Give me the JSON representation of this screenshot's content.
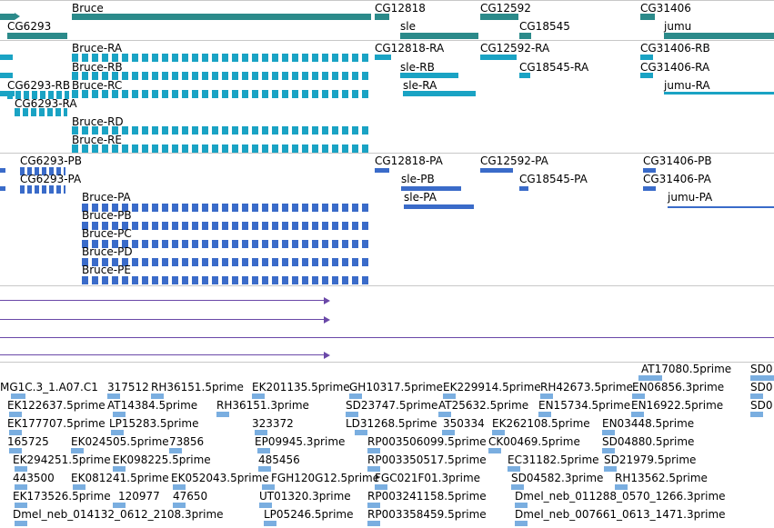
{
  "colors": {
    "gene": "#2b8a8a",
    "rna": "#1aa3c4",
    "cds": "#3a6bc9",
    "evidence": "#6a48a8",
    "est": "#7aaee0",
    "separator": "#c8c8c8"
  },
  "genes": [
    "Bruce",
    "CG6293",
    "CG12818",
    "sle",
    "CG12592",
    "CG18545",
    "CG31406",
    "jumu"
  ],
  "transcripts": [
    "Bruce-RA",
    "Bruce-RB",
    "Bruce-RC",
    "Bruce-RD",
    "Bruce-RE",
    "CG6293-RB",
    "CG6293-RA",
    "CG12818-RA",
    "sle-RB",
    "sle-RA",
    "CG12592-RA",
    "CG18545-RA",
    "CG31406-RB",
    "CG31406-RA",
    "jumu-RA"
  ],
  "proteins": [
    "CG6293-PB",
    "CG6293-PA",
    "Bruce-PA",
    "Bruce-PB",
    "Bruce-PC",
    "Bruce-PD",
    "Bruce-PE",
    "CG12818-PA",
    "sle-PB",
    "sle-PA",
    "CG12592-PA",
    "CG18545-PA",
    "CG31406-PB",
    "CG31406-PA",
    "jumu-PA"
  ],
  "ests": [
    "MG1C.3_1.A07.C1",
    "317512",
    "RH36151.5prime",
    "EK201135.5prime",
    "GH10317.5prime",
    "EK229914.5prime",
    "RH42673.5prime",
    "AT17080.5prime",
    "SD0",
    "EN06856.3prime",
    "SD0",
    "EK122637.5prime",
    "AT14384.5prime",
    "RH36151.3prime",
    "SD23747.5prime",
    "AT25632.5prime",
    "EN15734.5prime",
    "EN16922.5prime",
    "SD0",
    "EK177707.5prime",
    "LP15283.5prime",
    "323372",
    "LD31268.5prime",
    "350334",
    "EK262108.5prime",
    "EN03448.5prime",
    "165725",
    "EK024505.5prime",
    "73856",
    "EP09945.3prime",
    "RP003506099.5prime",
    "CK00469.5prime",
    "SD04880.5prime",
    "EK294251.5prime",
    "EK098225.5prime",
    "485456",
    "RP003350517.5prime",
    "EC31182.5prime",
    "SD21979.5prime",
    "443500",
    "EK081241.5prime",
    "EK052043.5prime",
    "FGH120G12.5prime",
    "FGC021F01.3prime",
    "SD04582.3prime",
    "RH13562.5prime",
    "EK173526.5prime",
    "120977",
    "47650",
    "UT01320.3prime",
    "RP003241158.5prime",
    "Dmel_neb_011288_0570_1266.3prime",
    "Dmel_neb_014132_0612_2108.3prime",
    "LP05246.5prime",
    "RP003358459.5prime",
    "Dmel_neb_007661_0613_1471.3prime"
  ]
}
